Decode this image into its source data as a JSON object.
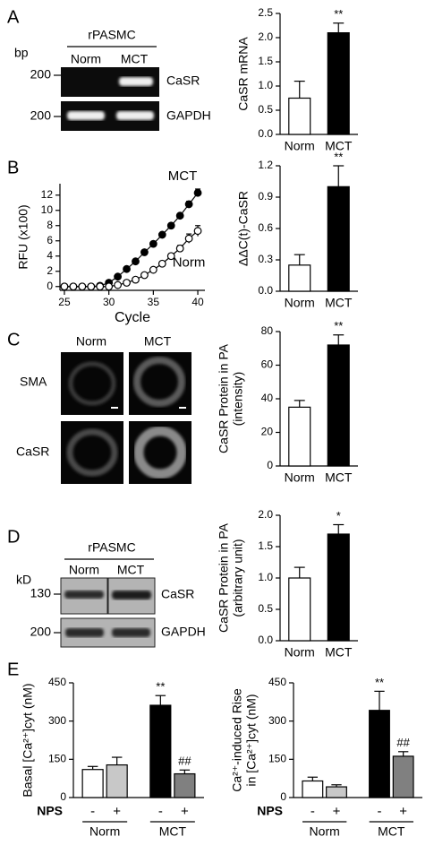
{
  "figure": {
    "panel_letters": [
      "A",
      "B",
      "C",
      "D",
      "E"
    ],
    "panel_a_gel": {
      "title": "rPASMC",
      "size_unit": "bp",
      "lanes": [
        "Norm",
        "MCT"
      ],
      "rows": [
        {
          "size": 200,
          "label": "CaSR"
        },
        {
          "size": 200,
          "label": "GAPDH"
        }
      ]
    },
    "panel_c_images": {
      "columns": [
        "Norm",
        "MCT"
      ],
      "rows": [
        "SMA",
        "CaSR"
      ]
    },
    "panel_d_blot": {
      "title": "rPASMC",
      "size_unit": "kD",
      "lanes": [
        "Norm",
        "MCT"
      ],
      "rows": [
        {
          "size": 130,
          "label": "CaSR"
        },
        {
          "size": 200,
          "label": "GAPDH"
        }
      ]
    }
  },
  "chart_data": [
    {
      "type": "bar",
      "ylabel": [
        "CaSR mRNA"
      ],
      "categories": [
        "Norm",
        "MCT"
      ],
      "values": [
        0.75,
        2.1
      ],
      "errors": [
        0.35,
        0.2
      ],
      "colors": [
        "#ffffff",
        "#000000"
      ],
      "markers": [
        null,
        "**"
      ],
      "ylim": [
        0,
        2.5
      ],
      "yticks": [
        {
          "value": 0,
          "label": "0.0"
        },
        0.5,
        {
          "value": 1,
          "label": "1.0"
        },
        1.5,
        {
          "value": 2,
          "label": "2.0"
        },
        2.5
      ]
    },
    {
      "type": "line",
      "ylabel": [
        "RFU (x100)"
      ],
      "xlabel": "Cycle",
      "x": [
        25,
        26,
        27,
        28,
        29,
        30,
        31,
        32,
        33,
        34,
        35,
        36,
        37,
        38,
        39,
        40
      ],
      "series": [
        {
          "name": "MCT",
          "color": "#000000",
          "marker_fill": "#000000",
          "values": [
            0,
            0,
            0,
            0,
            0.1,
            0.5,
            1.3,
            2.3,
            3.3,
            4.5,
            5.6,
            6.8,
            8.0,
            9.3,
            10.8,
            12.3
          ],
          "errors": [
            null,
            null,
            null,
            null,
            null,
            null,
            null,
            null,
            null,
            null,
            null,
            null,
            null,
            0.3,
            0.4,
            0.5
          ]
        },
        {
          "name": "Norm",
          "color": "#000000",
          "marker_fill": "#ffffff",
          "values": [
            0,
            0,
            0,
            0,
            0,
            0,
            0.2,
            0.5,
            0.9,
            1.5,
            2.2,
            3.0,
            4.0,
            5.0,
            6.3,
            7.3
          ],
          "errors": [
            null,
            null,
            null,
            null,
            null,
            null,
            null,
            null,
            null,
            null,
            null,
            null,
            0.3,
            0.4,
            0.6,
            0.7
          ]
        }
      ],
      "xlim": [
        24.5,
        40.8
      ],
      "xticks": [
        25,
        30,
        35,
        40
      ],
      "ylim": [
        -0.5,
        13.5
      ],
      "yticks": [
        0,
        2,
        4,
        6,
        8,
        10,
        12
      ]
    },
    {
      "type": "bar",
      "ylabel": [
        "ΔΔC(t)-CaSR"
      ],
      "categories": [
        "Norm",
        "MCT"
      ],
      "values": [
        0.25,
        1.0
      ],
      "errors": [
        0.1,
        0.2
      ],
      "colors": [
        "#ffffff",
        "#000000"
      ],
      "markers": [
        null,
        "**"
      ],
      "ylim": [
        0,
        1.2
      ],
      "yticks": [
        {
          "value": 0,
          "label": "0.0"
        },
        0.3,
        0.6,
        0.9,
        1.2
      ]
    },
    {
      "type": "bar",
      "ylabel": [
        "CaSR Protein in PA",
        "(intensity)"
      ],
      "categories": [
        "Norm",
        "MCT"
      ],
      "values": [
        35,
        72
      ],
      "errors": [
        4,
        6
      ],
      "colors": [
        "#ffffff",
        "#000000"
      ],
      "markers": [
        null,
        "**"
      ],
      "ylim": [
        0,
        80
      ],
      "yticks": [
        0,
        20,
        40,
        60,
        80
      ]
    },
    {
      "type": "bar",
      "ylabel": [
        "CaSR Protein in PA",
        "(arbitrary unit)"
      ],
      "categories": [
        "Norm",
        "MCT"
      ],
      "values": [
        1.0,
        1.7
      ],
      "errors": [
        0.17,
        0.15
      ],
      "colors": [
        "#ffffff",
        "#000000"
      ],
      "markers": [
        null,
        "*"
      ],
      "ylim": [
        0,
        2.0
      ],
      "yticks": [
        {
          "value": 0,
          "label": "0.0"
        },
        0.5,
        {
          "value": 1,
          "label": "1.0"
        },
        1.5,
        {
          "value": 2,
          "label": "2.0"
        }
      ]
    },
    {
      "type": "bar",
      "ylabel": [
        "Basal [Ca²⁺]cyt (nM)"
      ],
      "category_axis_label": "NPS",
      "categories": [
        "-",
        "+",
        "-",
        "+"
      ],
      "groups": [
        "Norm",
        "MCT"
      ],
      "values": [
        110,
        128,
        362,
        93
      ],
      "errors": [
        12,
        30,
        38,
        15
      ],
      "colors": [
        "#ffffff",
        "#c8c8c8",
        "#000000",
        "#808080"
      ],
      "markers": [
        null,
        null,
        "**",
        "##"
      ],
      "ylim": [
        0,
        450
      ],
      "yticks": [
        0,
        150,
        300,
        450
      ]
    },
    {
      "type": "bar",
      "ylabel": [
        "Ca²⁺-induced Rise",
        "in [Ca²⁺]cyt (nM)"
      ],
      "category_axis_label": "NPS",
      "categories": [
        "-",
        "+",
        "-",
        "+"
      ],
      "groups": [
        "Norm",
        "MCT"
      ],
      "values": [
        65,
        42,
        342,
        162
      ],
      "errors": [
        15,
        8,
        75,
        18
      ],
      "colors": [
        "#ffffff",
        "#c8c8c8",
        "#000000",
        "#808080"
      ],
      "markers": [
        null,
        null,
        "**",
        "##"
      ],
      "ylim": [
        0,
        450
      ],
      "yticks": [
        0,
        150,
        300,
        450
      ]
    }
  ]
}
